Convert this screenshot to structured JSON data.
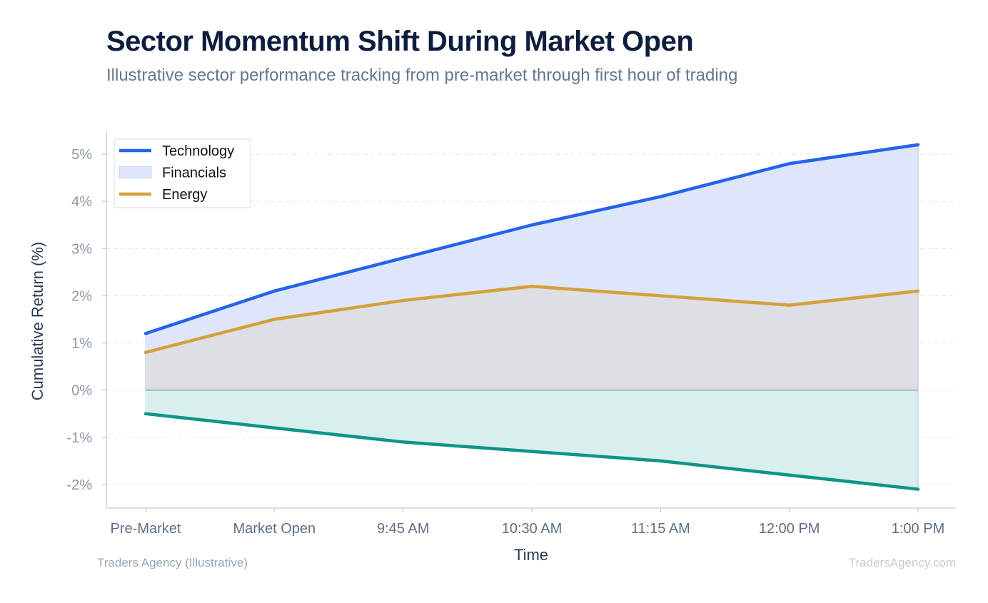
{
  "header": {
    "title": "Sector Momentum Shift During Market Open",
    "subtitle": "Illustrative sector performance tracking from pre-market through first hour of trading"
  },
  "footer": {
    "left": "Traders Agency (Illustrative)",
    "right": "TradersAgency.com"
  },
  "chart_data": {
    "type": "area",
    "xlabel": "Time",
    "ylabel": "Cumulative Return (%)",
    "categories": [
      "Pre-Market",
      "Market Open",
      "9:45 AM",
      "10:30 AM",
      "11:15 AM",
      "12:00 PM",
      "1:00 PM"
    ],
    "ylim": [
      -2.5,
      5.5
    ],
    "yticks": [
      -2,
      -1,
      0,
      1,
      2,
      3,
      4,
      5
    ],
    "ytick_labels": [
      "-2%",
      "-1%",
      "0%",
      "1%",
      "2%",
      "3%",
      "4%",
      "5%"
    ],
    "grid": true,
    "legend_position": "top-left",
    "series": [
      {
        "name": "Technology",
        "values": [
          1.2,
          2.1,
          2.8,
          3.5,
          4.1,
          4.8,
          5.2
        ],
        "color": "#2563eb",
        "fill": "#dde6fc",
        "legend_style": "line"
      },
      {
        "name": "Financials",
        "values": [
          -0.5,
          -0.8,
          -1.1,
          -1.3,
          -1.5,
          -1.8,
          -2.1
        ],
        "color": "#0f9488",
        "fill": "#d9efed",
        "legend_style": "area"
      },
      {
        "name": "Energy",
        "values": [
          0.8,
          1.5,
          1.9,
          2.2,
          2.0,
          1.8,
          2.1
        ],
        "color": "#d4a03a",
        "fill": "#dcdcdc",
        "legend_style": "line"
      }
    ],
    "legend_swatch_colors": {
      "Financials": {
        "fill": "#dde6fc",
        "stroke": "#c3d3f8"
      }
    }
  }
}
